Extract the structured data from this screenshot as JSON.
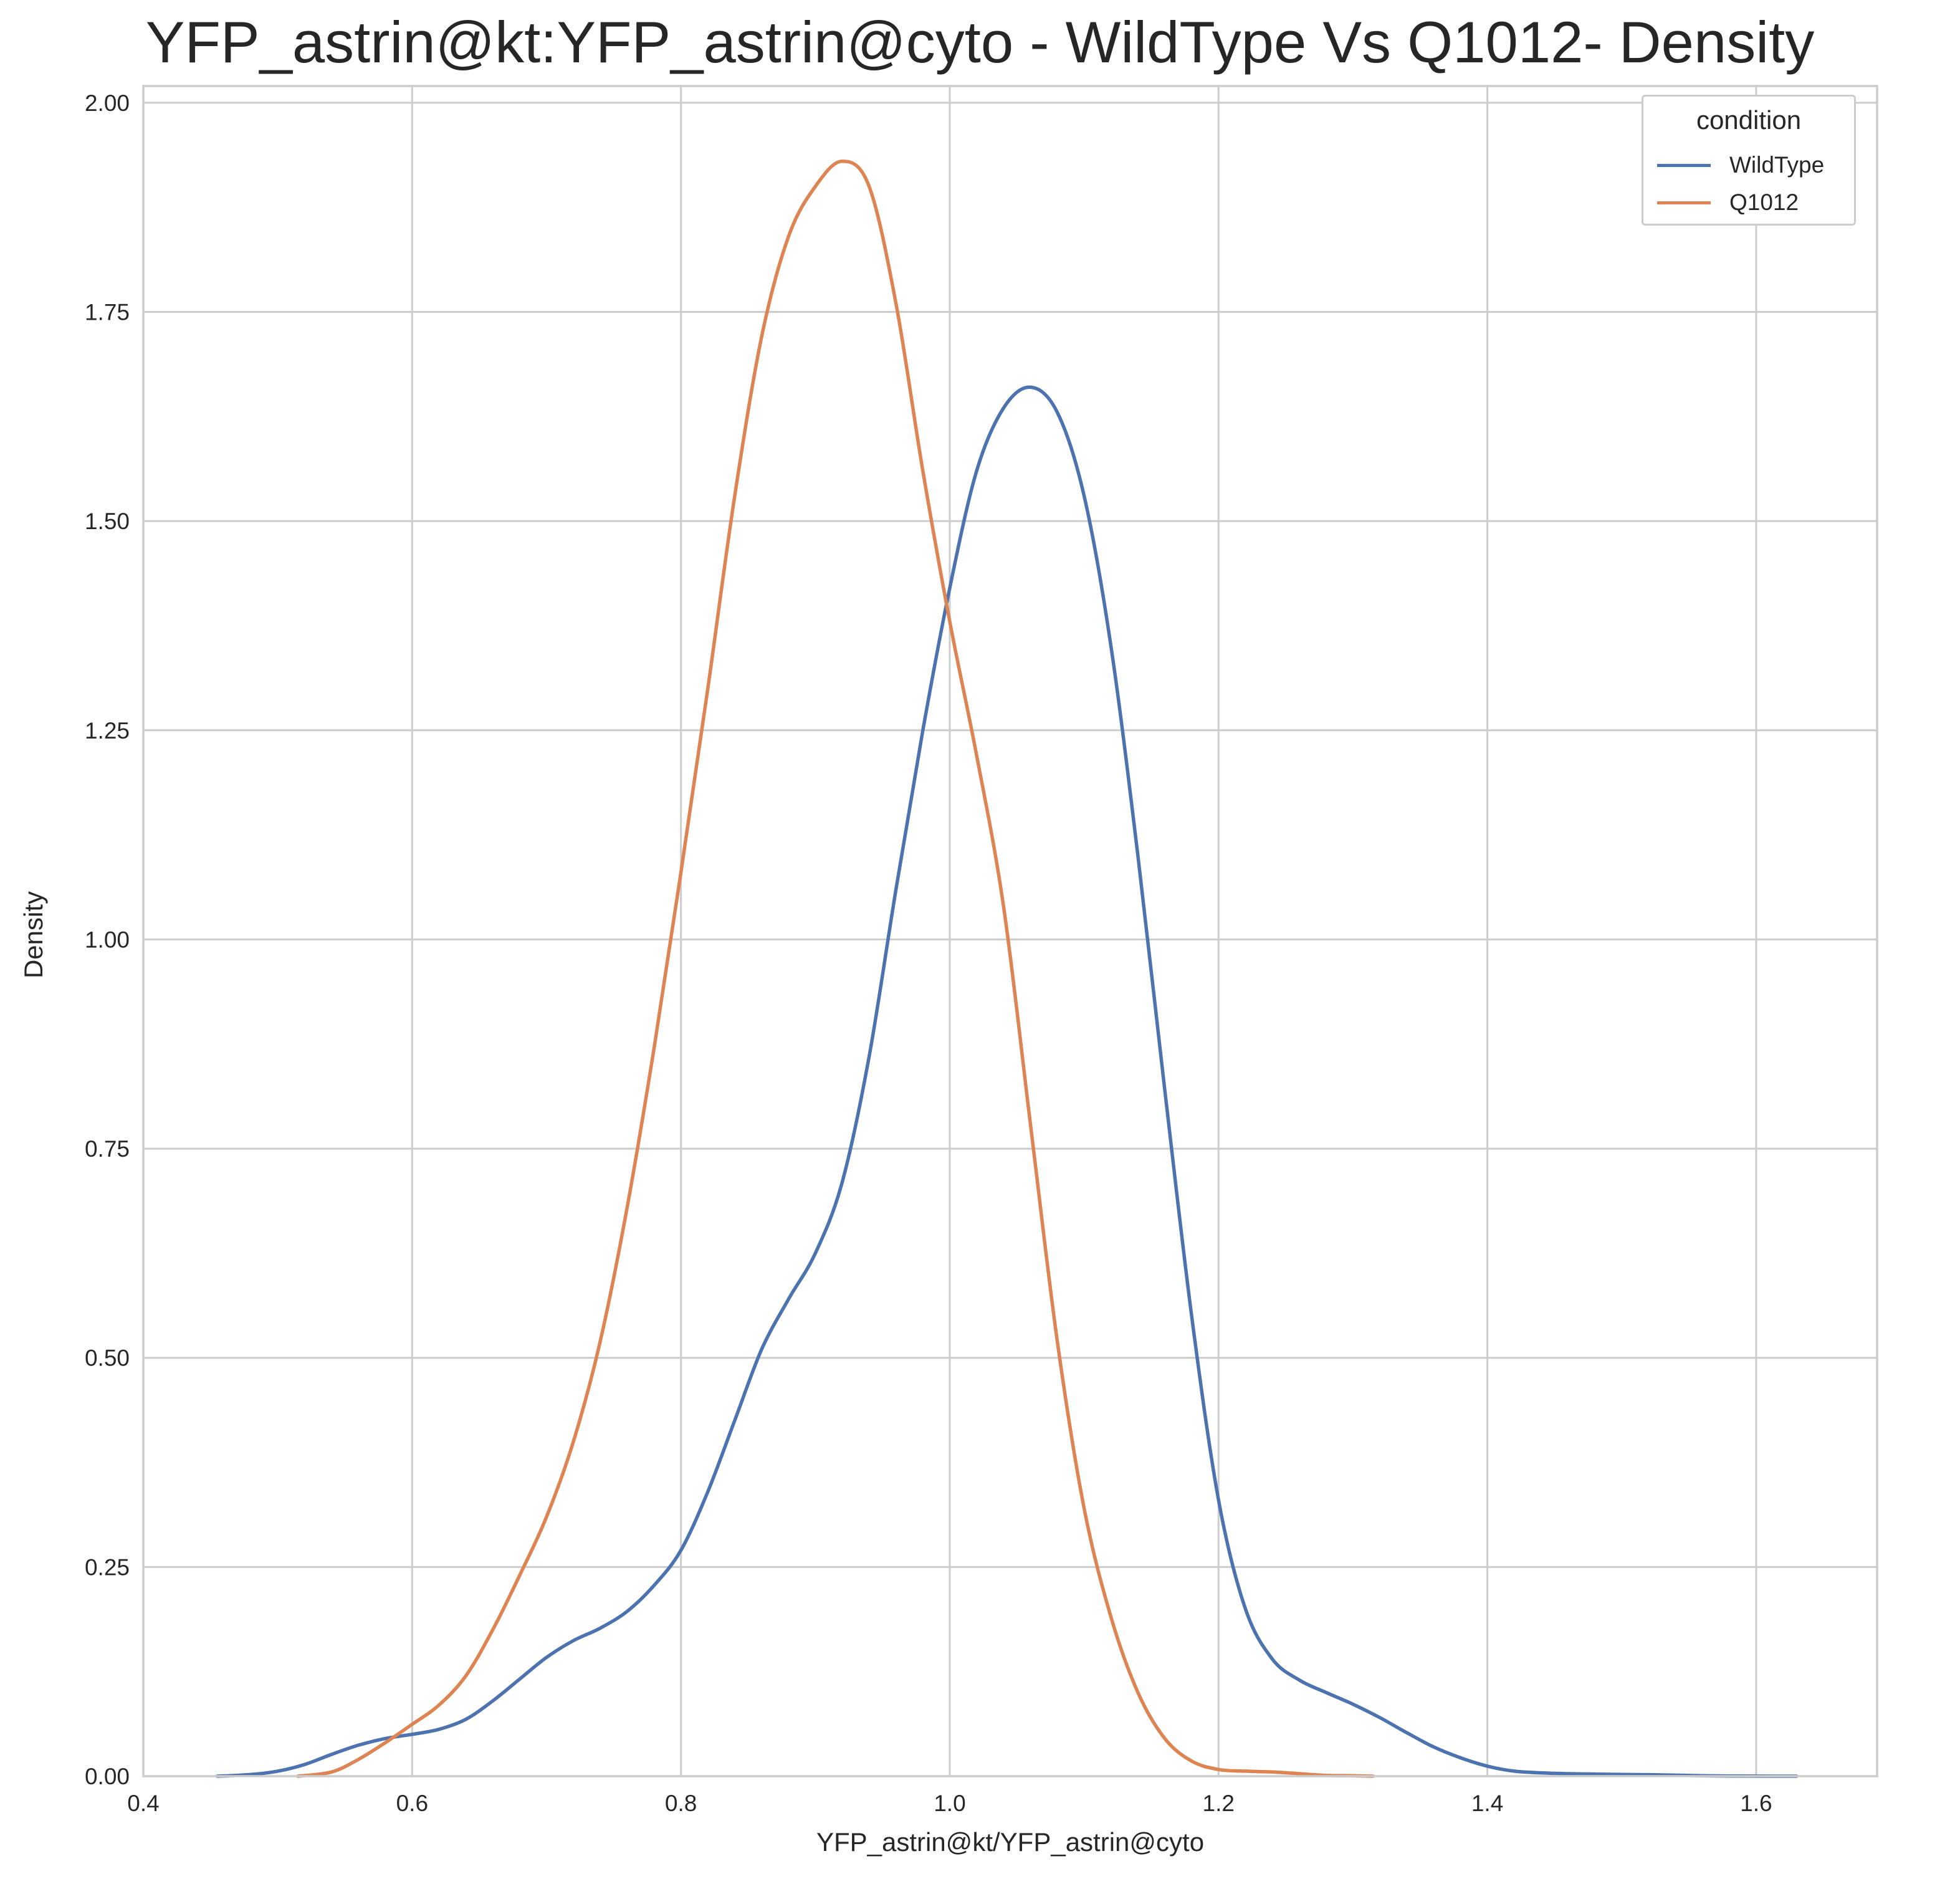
{
  "chart_data": {
    "type": "line",
    "title": "YFP_astrin@kt:YFP_astrin@cyto -  WildType Vs Q1012- Density",
    "xlabel": "YFP_astrin@kt/YFP_astrin@cyto",
    "ylabel": "Density",
    "xlim": [
      0.4,
      1.69
    ],
    "ylim": [
      0.0,
      2.02
    ],
    "xticks": [
      0.4,
      0.6,
      0.8,
      1.0,
      1.2,
      1.4,
      1.6
    ],
    "xtick_labels": [
      "0.4",
      "0.6",
      "0.8",
      "1.0",
      "1.2",
      "1.4",
      "1.6"
    ],
    "yticks": [
      0.0,
      0.25,
      0.5,
      0.75,
      1.0,
      1.25,
      1.5,
      1.75,
      2.0
    ],
    "ytick_labels": [
      "0.00",
      "0.25",
      "0.50",
      "0.75",
      "1.00",
      "1.25",
      "1.50",
      "1.75",
      "2.00"
    ],
    "grid": true,
    "legend": {
      "title": "condition",
      "placement": "top-right"
    },
    "series": [
      {
        "name": "WildType",
        "color": "#4c72b0",
        "x": [
          0.455,
          0.48,
          0.5,
          0.52,
          0.54,
          0.56,
          0.58,
          0.6,
          0.62,
          0.64,
          0.66,
          0.68,
          0.7,
          0.72,
          0.74,
          0.76,
          0.78,
          0.8,
          0.82,
          0.84,
          0.86,
          0.88,
          0.9,
          0.92,
          0.94,
          0.96,
          0.98,
          1.0,
          1.02,
          1.04,
          1.06,
          1.08,
          1.1,
          1.12,
          1.14,
          1.16,
          1.18,
          1.2,
          1.22,
          1.24,
          1.26,
          1.28,
          1.3,
          1.32,
          1.34,
          1.36,
          1.38,
          1.4,
          1.42,
          1.44,
          1.46,
          1.48,
          1.5,
          1.52,
          1.54,
          1.56,
          1.58,
          1.6,
          1.63
        ],
        "y": [
          0.0,
          0.002,
          0.006,
          0.014,
          0.026,
          0.037,
          0.045,
          0.05,
          0.056,
          0.068,
          0.09,
          0.116,
          0.142,
          0.162,
          0.177,
          0.197,
          0.228,
          0.27,
          0.34,
          0.425,
          0.51,
          0.57,
          0.625,
          0.71,
          0.86,
          1.06,
          1.25,
          1.42,
          1.56,
          1.635,
          1.66,
          1.63,
          1.53,
          1.35,
          1.1,
          0.82,
          0.55,
          0.33,
          0.2,
          0.14,
          0.115,
          0.1,
          0.086,
          0.07,
          0.052,
          0.035,
          0.022,
          0.012,
          0.006,
          0.004,
          0.003,
          0.0025,
          0.002,
          0.0018,
          0.0012,
          0.0006,
          0.0002,
          0.0001,
          0.0
        ],
        "y_note": "density"
      },
      {
        "name": "Q1012",
        "color": "#dd8452",
        "x": [
          0.515,
          0.54,
          0.56,
          0.58,
          0.6,
          0.62,
          0.64,
          0.66,
          0.68,
          0.7,
          0.72,
          0.74,
          0.76,
          0.78,
          0.8,
          0.82,
          0.84,
          0.86,
          0.88,
          0.9,
          0.92,
          0.94,
          0.96,
          0.98,
          1.0,
          1.02,
          1.04,
          1.06,
          1.08,
          1.1,
          1.12,
          1.14,
          1.16,
          1.18,
          1.2,
          1.22,
          1.24,
          1.26,
          1.28,
          1.3,
          1.315
        ],
        "y": [
          0.0,
          0.005,
          0.02,
          0.04,
          0.062,
          0.085,
          0.12,
          0.175,
          0.24,
          0.31,
          0.4,
          0.52,
          0.68,
          0.87,
          1.08,
          1.3,
          1.53,
          1.72,
          1.84,
          1.9,
          1.93,
          1.9,
          1.76,
          1.56,
          1.38,
          1.22,
          1.04,
          0.78,
          0.52,
          0.32,
          0.19,
          0.1,
          0.045,
          0.018,
          0.008,
          0.006,
          0.005,
          0.003,
          0.001,
          0.0005,
          0.0
        ]
      }
    ]
  }
}
